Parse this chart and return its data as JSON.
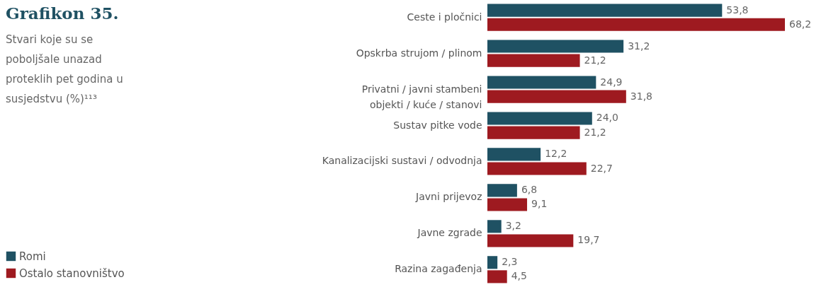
{
  "chart_data": {
    "type": "bar",
    "orientation": "horizontal",
    "title": "Grafikon 35.",
    "subtitle": "Stvari koje su se poboljšale unazad proteklih pet godina u susjedstvu (%)¹¹³",
    "categories": [
      "Ceste i pločnici",
      "Opskrba strujom / plinom",
      "Privatni / javni stambeni objekti / kuće / stanovi",
      "Sustav pitke vode",
      "Kanalizacijski sustavi / odvodnja",
      "Javni prijevoz",
      "Javne zgrade",
      "Razina zagađenja"
    ],
    "series": [
      {
        "name": "Romi",
        "color": "#1f5163",
        "values": [
          53.8,
          31.2,
          24.9,
          24.0,
          12.2,
          6.8,
          3.2,
          2.3
        ],
        "value_labels": [
          "53,8",
          "31,2",
          "24,9",
          "24,0",
          "12,2",
          "6,8",
          "3,2",
          "2,3"
        ]
      },
      {
        "name": "Ostalo stanovništvo",
        "color": "#9e1a20",
        "values": [
          68.2,
          21.2,
          31.8,
          21.2,
          22.7,
          9.1,
          19.7,
          4.5
        ],
        "value_labels": [
          "68,2",
          "21,2",
          "31,8",
          "21,2",
          "22,7",
          "9,1",
          "19,7",
          "4,5"
        ]
      }
    ],
    "legend": "bottom left",
    "grid": false
  }
}
